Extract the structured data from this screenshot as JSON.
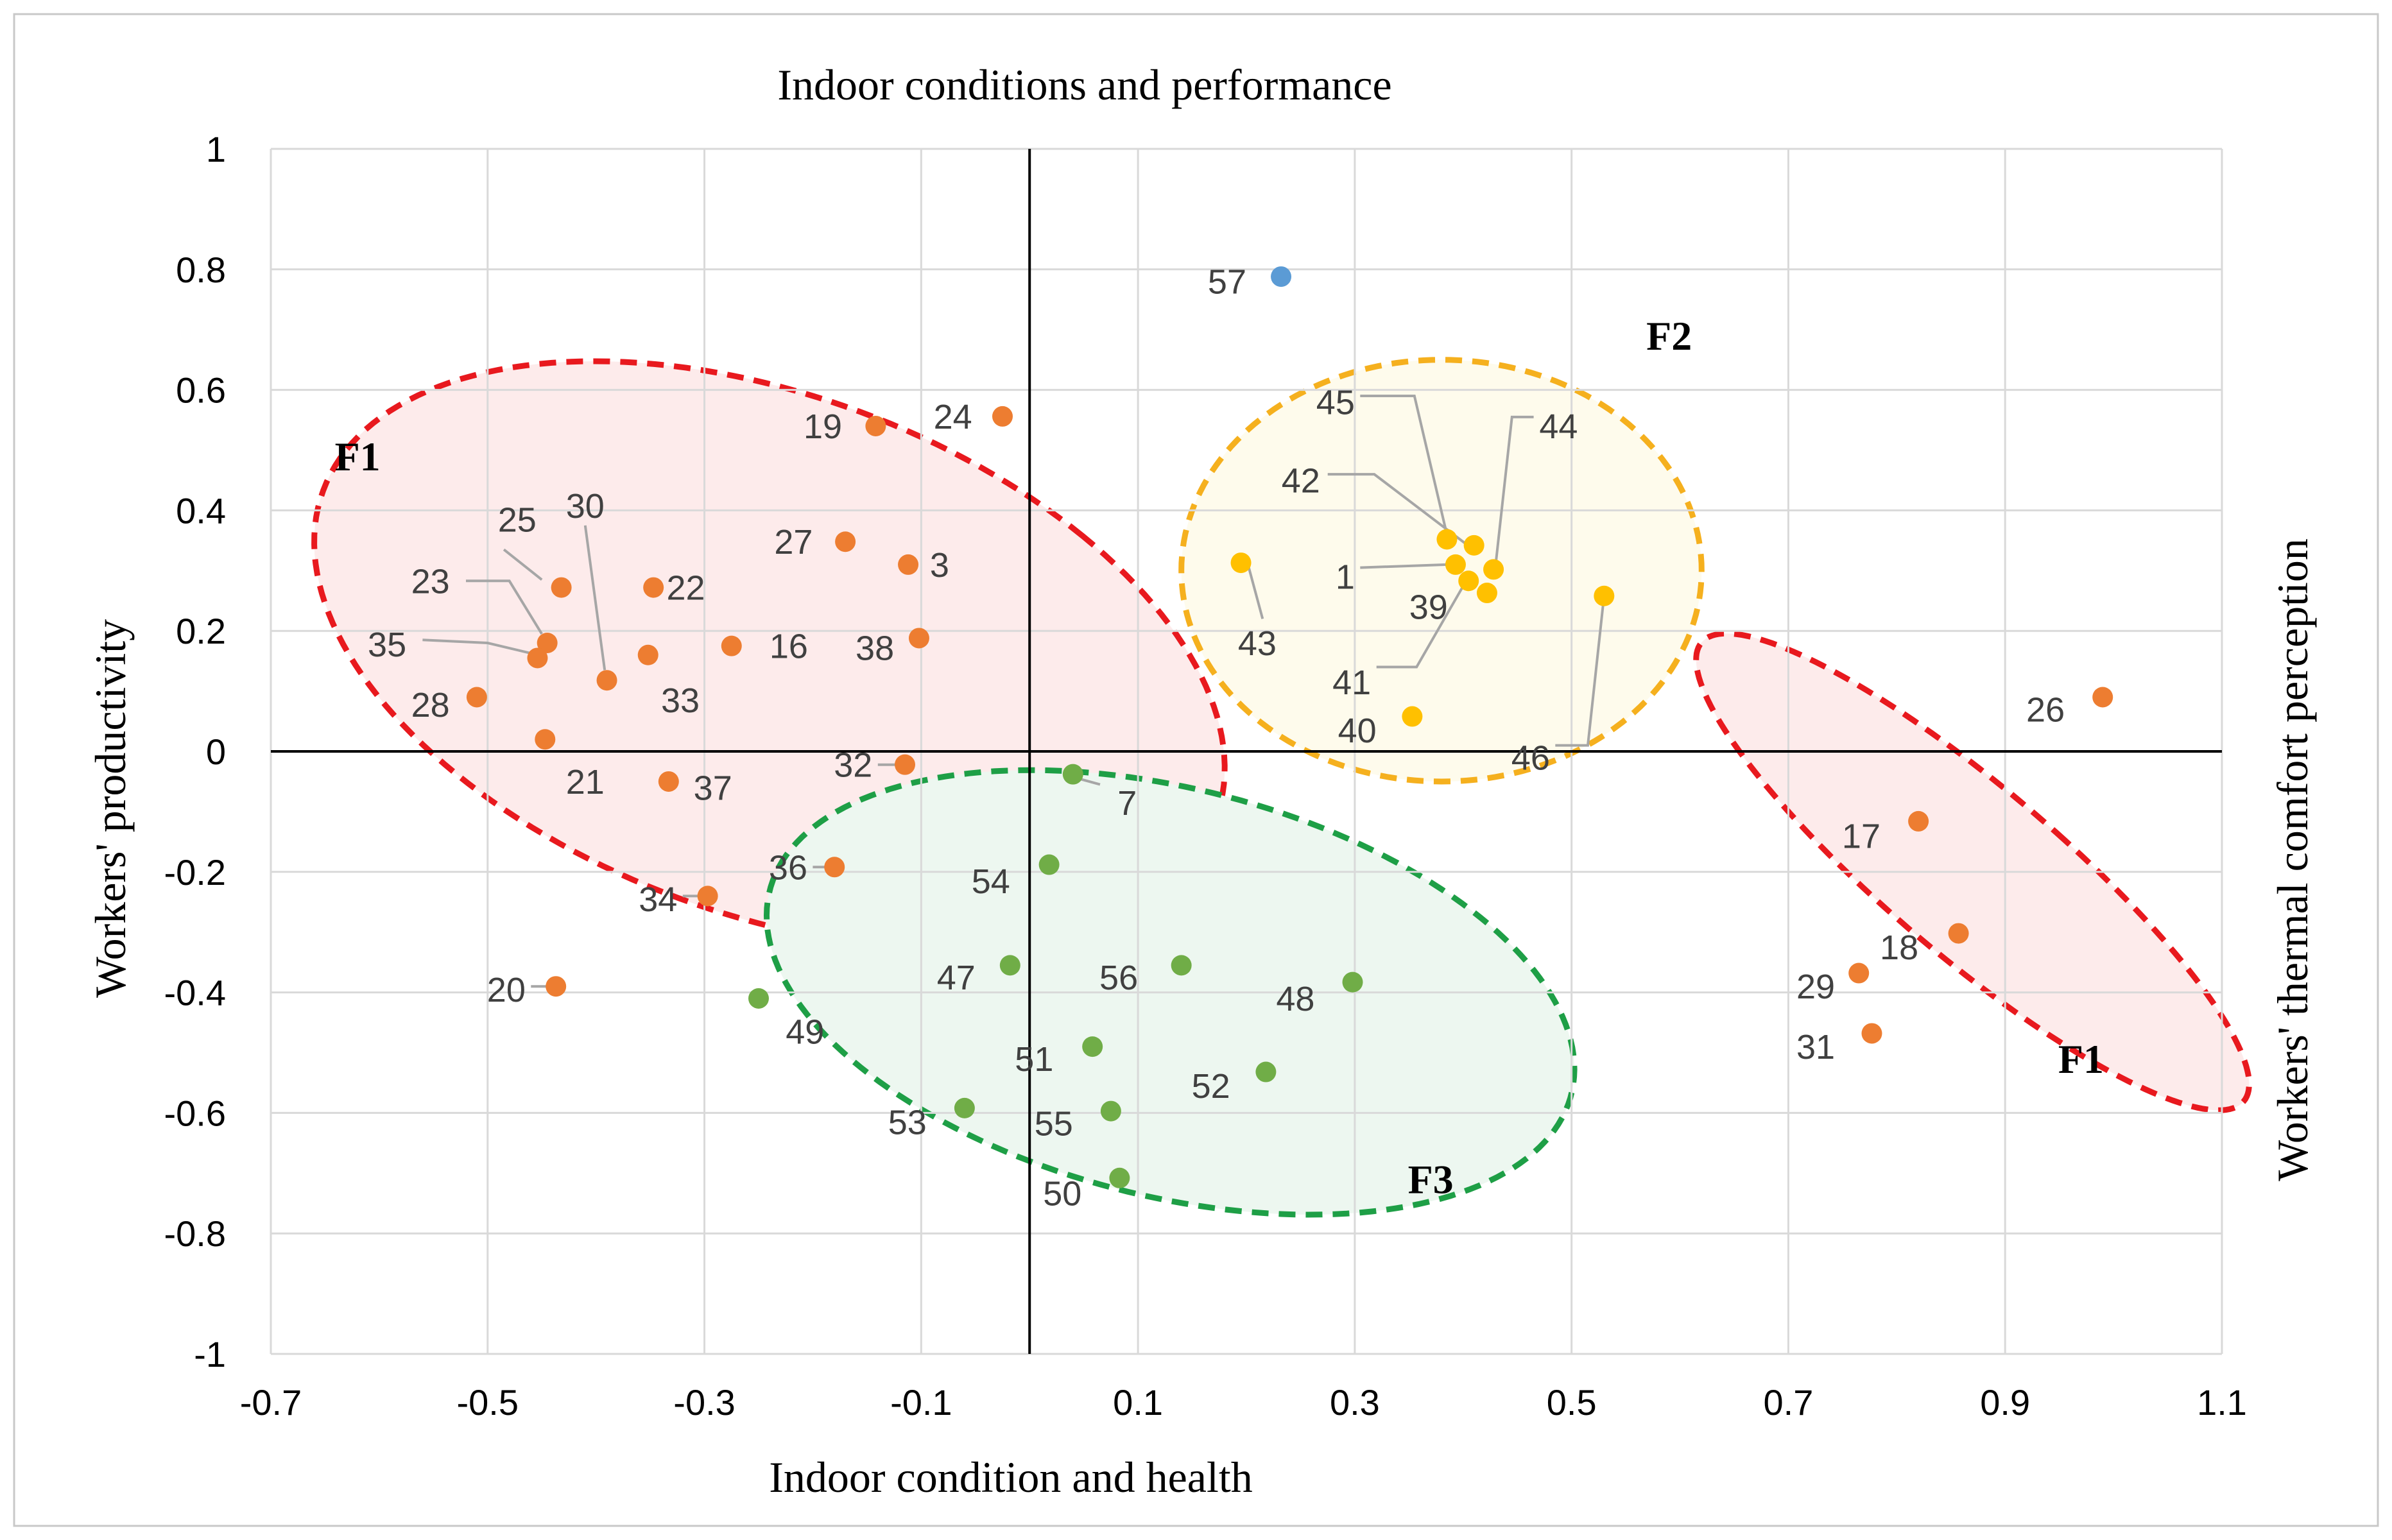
{
  "chart_data": {
    "type": "scatter",
    "title": "Indoor conditions and performance",
    "xlabel": "Indoor condition and health",
    "ylabel": "Workers' productivity",
    "y2label": "Workers' thermal comfort perception",
    "xlim": [
      -0.7,
      1.1
    ],
    "ylim": [
      -1,
      1
    ],
    "xticks": [
      -0.7,
      -0.5,
      -0.3,
      -0.1,
      0.1,
      0.3,
      0.5,
      0.7,
      0.9,
      1.1
    ],
    "yticks": [
      -1,
      -0.8,
      -0.6,
      -0.4,
      -0.2,
      0,
      0.2,
      0.4,
      0.6,
      0.8,
      1
    ],
    "xtick_labels": [
      "-0.7",
      "-0.5",
      "-0.3",
      "-0.1",
      "0.1",
      "0.3",
      "0.5",
      "0.7",
      "0.9",
      "1.1"
    ],
    "ytick_labels": [
      "-1",
      "-0.8",
      "-0.6",
      "-0.4",
      "-0.2",
      "0",
      "0.2",
      "0.4",
      "0.6",
      "0.8",
      "1"
    ],
    "grid": true,
    "colors": {
      "orange": "#ED7D31",
      "yellow": "#FFC000",
      "green": "#70AD47",
      "blue": "#5B9BD5",
      "red_dash": "#E8191E",
      "yellow_dash": "#F5B01E",
      "green_dash": "#1E9F46",
      "red_fill": "#FDEBEB",
      "yellow_fill": "#FEFBEC",
      "green_fill": "#EDF7F0"
    },
    "clusters": [
      {
        "label": "F1",
        "color": "red",
        "cx": -0.24,
        "cy": 0.16,
        "rx": 0.35,
        "ry": 0.54,
        "rot": 0.6
      },
      {
        "label": "F2",
        "color": "yellow",
        "cx": 0.38,
        "cy": 0.3,
        "rx": 0.24,
        "ry": 0.35,
        "rot": 0
      },
      {
        "label": "F3",
        "color": "green",
        "cx": 0.13,
        "cy": -0.4,
        "rx": 0.3,
        "ry": 0.43,
        "rot": 0.8
      },
      {
        "label": "F1",
        "color": "red",
        "cx": 0.87,
        "cy": -0.2,
        "rx": 0.1,
        "ry": 0.46,
        "rot": 0.55
      }
    ],
    "cluster_labels": [
      {
        "text": "F1",
        "x": -0.62,
        "y": 0.49
      },
      {
        "text": "F2",
        "x": 0.59,
        "y": 0.69
      },
      {
        "text": "F3",
        "x": 0.37,
        "y": -0.71
      },
      {
        "text": "F1",
        "x": 0.97,
        "y": -0.51
      }
    ],
    "points": [
      {
        "id": "57",
        "x": 0.232,
        "y": 0.788,
        "color": "blue",
        "lx": 0.2,
        "ly": 0.78,
        "anchor": "end"
      },
      {
        "id": "19",
        "x": -0.142,
        "y": 0.54,
        "color": "orange",
        "lx": -0.173,
        "ly": 0.54,
        "anchor": "end"
      },
      {
        "id": "24",
        "x": -0.025,
        "y": 0.556,
        "color": "orange",
        "lx": -0.053,
        "ly": 0.556,
        "anchor": "end"
      },
      {
        "id": "27",
        "x": -0.17,
        "y": 0.348,
        "color": "orange",
        "lx": -0.2,
        "ly": 0.348,
        "anchor": "end"
      },
      {
        "id": "3",
        "x": -0.112,
        "y": 0.31,
        "color": "orange",
        "lx": -0.092,
        "ly": 0.31,
        "anchor": "start"
      },
      {
        "id": "38",
        "x": -0.102,
        "y": 0.188,
        "color": "orange",
        "lx": -0.125,
        "ly": 0.172,
        "anchor": "end"
      },
      {
        "id": "16",
        "x": -0.275,
        "y": 0.175,
        "color": "orange",
        "lx": -0.24,
        "ly": 0.175,
        "anchor": "start"
      },
      {
        "id": "22",
        "x": -0.347,
        "y": 0.272,
        "color": "orange",
        "lx": -0.335,
        "ly": 0.272,
        "anchor": "start"
      },
      {
        "id": "25",
        "x": -0.432,
        "y": 0.272,
        "color": "orange",
        "lx": -0.455,
        "ly": 0.385,
        "anchor": "end",
        "leader": [
          [
            -0.485,
            0.335
          ],
          [
            -0.45,
            0.285
          ]
        ]
      },
      {
        "id": "23",
        "x": -0.445,
        "y": 0.18,
        "color": "orange",
        "lx": -0.535,
        "ly": 0.283,
        "anchor": "end",
        "leader": [
          [
            -0.52,
            0.283
          ],
          [
            -0.48,
            0.283
          ],
          [
            -0.45,
            0.195
          ]
        ]
      },
      {
        "id": "35",
        "x": -0.454,
        "y": 0.155,
        "color": "orange",
        "lx": -0.575,
        "ly": 0.178,
        "anchor": "end",
        "leader": [
          [
            -0.56,
            0.185
          ],
          [
            -0.5,
            0.18
          ],
          [
            -0.458,
            0.162
          ]
        ]
      },
      {
        "id": "30",
        "x": -0.39,
        "y": 0.118,
        "color": "orange",
        "lx": -0.41,
        "ly": 0.408,
        "anchor": "middle",
        "leader": [
          [
            -0.41,
            0.375
          ],
          [
            -0.392,
            0.135
          ]
        ]
      },
      {
        "id": "33",
        "x": -0.352,
        "y": 0.16,
        "color": "orange",
        "lx": -0.34,
        "ly": 0.085,
        "anchor": "start"
      },
      {
        "id": "28",
        "x": -0.51,
        "y": 0.09,
        "color": "orange",
        "lx": -0.535,
        "ly": 0.078,
        "anchor": "end"
      },
      {
        "id": "21",
        "x": -0.447,
        "y": 0.02,
        "color": "orange",
        "lx": -0.41,
        "ly": -0.05,
        "anchor": "middle"
      },
      {
        "id": "37",
        "x": -0.333,
        "y": -0.05,
        "color": "orange",
        "lx": -0.31,
        "ly": -0.06,
        "anchor": "start"
      },
      {
        "id": "32",
        "x": -0.115,
        "y": -0.022,
        "color": "orange",
        "lx": -0.145,
        "ly": -0.022,
        "anchor": "end",
        "leader": [
          [
            -0.14,
            -0.022
          ],
          [
            -0.12,
            -0.022
          ]
        ]
      },
      {
        "id": "36",
        "x": -0.18,
        "y": -0.192,
        "color": "orange",
        "lx": -0.205,
        "ly": -0.192,
        "anchor": "end",
        "leader": [
          [
            -0.2,
            -0.192
          ],
          [
            -0.185,
            -0.192
          ]
        ]
      },
      {
        "id": "34",
        "x": -0.297,
        "y": -0.24,
        "color": "orange",
        "lx": -0.325,
        "ly": -0.245,
        "anchor": "end",
        "leader": [
          [
            -0.32,
            -0.24
          ],
          [
            -0.302,
            -0.24
          ]
        ]
      },
      {
        "id": "20",
        "x": -0.437,
        "y": -0.39,
        "color": "orange",
        "lx": -0.465,
        "ly": -0.395,
        "anchor": "end",
        "leader": [
          [
            -0.46,
            -0.39
          ],
          [
            -0.44,
            -0.39
          ]
        ]
      },
      {
        "id": "45",
        "x": 0.385,
        "y": 0.352,
        "color": "yellow",
        "lx": 0.3,
        "ly": 0.58,
        "anchor": "end",
        "leader": [
          [
            0.305,
            0.59
          ],
          [
            0.355,
            0.59
          ],
          [
            0.385,
            0.36
          ]
        ]
      },
      {
        "id": "44",
        "x": 0.428,
        "y": 0.302,
        "color": "yellow",
        "lx": 0.488,
        "ly": 0.54,
        "anchor": "middle",
        "leader": [
          [
            0.465,
            0.555
          ],
          [
            0.445,
            0.555
          ],
          [
            0.43,
            0.31
          ]
        ]
      },
      {
        "id": "42",
        "x": 0.41,
        "y": 0.342,
        "color": "yellow",
        "lx": 0.268,
        "ly": 0.45,
        "anchor": "end",
        "leader": [
          [
            0.275,
            0.46
          ],
          [
            0.318,
            0.46
          ],
          [
            0.402,
            0.345
          ]
        ]
      },
      {
        "id": "1",
        "x": 0.393,
        "y": 0.31,
        "color": "yellow",
        "lx": 0.3,
        "ly": 0.29,
        "anchor": "end",
        "leader": [
          [
            0.305,
            0.305
          ],
          [
            0.385,
            0.31
          ]
        ]
      },
      {
        "id": "39",
        "x": 0.405,
        "y": 0.283,
        "color": "yellow",
        "lx": 0.368,
        "ly": 0.24,
        "anchor": "middle"
      },
      {
        "id": "p39b",
        "x": 0.422,
        "y": 0.263,
        "color": "yellow",
        "label": false
      },
      {
        "id": "43",
        "x": 0.195,
        "y": 0.313,
        "color": "yellow",
        "lx": 0.21,
        "ly": 0.18,
        "anchor": "middle",
        "leader": [
          [
            0.215,
            0.22
          ],
          [
            0.2,
            0.32
          ]
        ]
      },
      {
        "id": "41",
        "x": 0.41,
        "y": 0.3,
        "color": "yellow",
        "lx": 0.315,
        "ly": 0.115,
        "anchor": "end",
        "leader": [
          [
            0.32,
            0.14
          ],
          [
            0.357,
            0.14
          ],
          [
            0.405,
            0.29
          ]
        ],
        "dot": false
      },
      {
        "id": "40",
        "x": 0.353,
        "y": 0.058,
        "color": "yellow",
        "lx": 0.32,
        "ly": 0.035,
        "anchor": "end"
      },
      {
        "id": "46",
        "x": 0.53,
        "y": 0.258,
        "color": "yellow",
        "lx": 0.48,
        "ly": -0.01,
        "anchor": "end",
        "leader": [
          [
            0.485,
            0.01
          ],
          [
            0.515,
            0.01
          ],
          [
            0.53,
            0.258
          ]
        ]
      },
      {
        "id": "7",
        "x": 0.04,
        "y": -0.038,
        "color": "green",
        "lx": 0.09,
        "ly": -0.085,
        "anchor": "middle",
        "leader": [
          [
            0.045,
            -0.045
          ],
          [
            0.065,
            -0.055
          ]
        ]
      },
      {
        "id": "54",
        "x": 0.018,
        "y": -0.188,
        "color": "green",
        "lx": -0.018,
        "ly": -0.215,
        "anchor": "end"
      },
      {
        "id": "47",
        "x": -0.018,
        "y": -0.355,
        "color": "green",
        "lx": -0.05,
        "ly": -0.375,
        "anchor": "end"
      },
      {
        "id": "56",
        "x": 0.14,
        "y": -0.355,
        "color": "green",
        "lx": 0.1,
        "ly": -0.375,
        "anchor": "end"
      },
      {
        "id": "48",
        "x": 0.298,
        "y": -0.383,
        "color": "green",
        "lx": 0.263,
        "ly": -0.41,
        "anchor": "end"
      },
      {
        "id": "49",
        "x": -0.25,
        "y": -0.41,
        "color": "green",
        "lx": -0.225,
        "ly": -0.465,
        "anchor": "start"
      },
      {
        "id": "51",
        "x": 0.058,
        "y": -0.49,
        "color": "green",
        "lx": 0.022,
        "ly": -0.51,
        "anchor": "end"
      },
      {
        "id": "52",
        "x": 0.218,
        "y": -0.532,
        "color": "green",
        "lx": 0.185,
        "ly": -0.555,
        "anchor": "end"
      },
      {
        "id": "53",
        "x": -0.06,
        "y": -0.592,
        "color": "green",
        "lx": -0.095,
        "ly": -0.615,
        "anchor": "end"
      },
      {
        "id": "55",
        "x": 0.075,
        "y": -0.597,
        "color": "green",
        "lx": 0.04,
        "ly": -0.617,
        "anchor": "end"
      },
      {
        "id": "50",
        "x": 0.083,
        "y": -0.708,
        "color": "green",
        "lx": 0.048,
        "ly": -0.733,
        "anchor": "end"
      },
      {
        "id": "26",
        "x": 0.99,
        "y": 0.09,
        "color": "orange",
        "lx": 0.955,
        "ly": 0.07,
        "anchor": "end"
      },
      {
        "id": "17",
        "x": 0.82,
        "y": -0.116,
        "color": "orange",
        "lx": 0.785,
        "ly": -0.14,
        "anchor": "end"
      },
      {
        "id": "18",
        "x": 0.857,
        "y": -0.302,
        "color": "orange",
        "lx": 0.82,
        "ly": -0.325,
        "anchor": "end"
      },
      {
        "id": "29",
        "x": 0.765,
        "y": -0.368,
        "color": "orange",
        "lx": 0.743,
        "ly": -0.39,
        "anchor": "end"
      },
      {
        "id": "31",
        "x": 0.777,
        "y": -0.468,
        "color": "orange",
        "lx": 0.743,
        "ly": -0.49,
        "anchor": "end"
      }
    ]
  }
}
